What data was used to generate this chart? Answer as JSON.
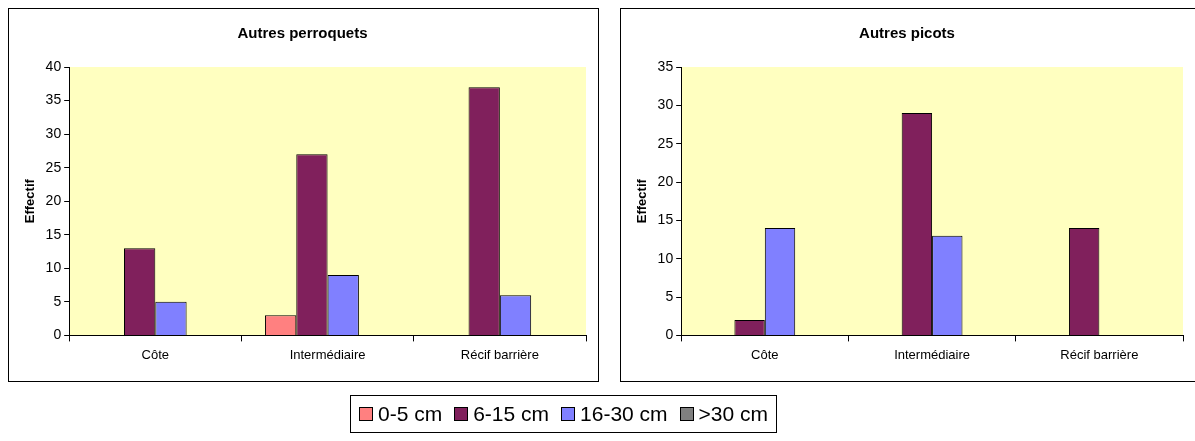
{
  "chart_data": [
    {
      "type": "bar",
      "title": "Autres perroquets",
      "ylabel": "Effectif",
      "categories": [
        "Côte",
        "Intermédiaire",
        "Récif barrière"
      ],
      "series": [
        {
          "name": "0-5 cm",
          "color": "#ff8080",
          "values": [
            null,
            3,
            null
          ]
        },
        {
          "name": "6-15 cm",
          "color": "#80205c",
          "values": [
            13,
            27,
            37
          ]
        },
        {
          "name": "16-30 cm",
          "color": "#8080ff",
          "values": [
            5,
            9,
            6
          ]
        },
        {
          "name": ">30 cm",
          "color": "#808080",
          "values": [
            null,
            null,
            null
          ]
        }
      ],
      "ylim": [
        0,
        40
      ],
      "yticks": [
        0,
        5,
        10,
        15,
        20,
        25,
        30,
        35,
        40
      ],
      "grid": false,
      "legend": "bottom"
    },
    {
      "type": "bar",
      "title": "Autres picots",
      "ylabel": "Effectif",
      "categories": [
        "Côte",
        "Intermédiaire",
        "Récif barrière"
      ],
      "series": [
        {
          "color": "#ff8080",
          "values": [
            null,
            null,
            null
          ]
        },
        {
          "color": "#80205c",
          "values": [
            2,
            29,
            14
          ]
        },
        {
          "color": "#8080ff",
          "values": [
            14,
            13,
            null
          ]
        },
        {
          "color": "#808080",
          "values": [
            null,
            null,
            null
          ]
        }
      ],
      "ylim": [
        0,
        35
      ],
      "yticks": [
        0,
        5,
        10,
        15,
        20,
        25,
        30,
        35
      ],
      "grid": false
    }
  ]
}
